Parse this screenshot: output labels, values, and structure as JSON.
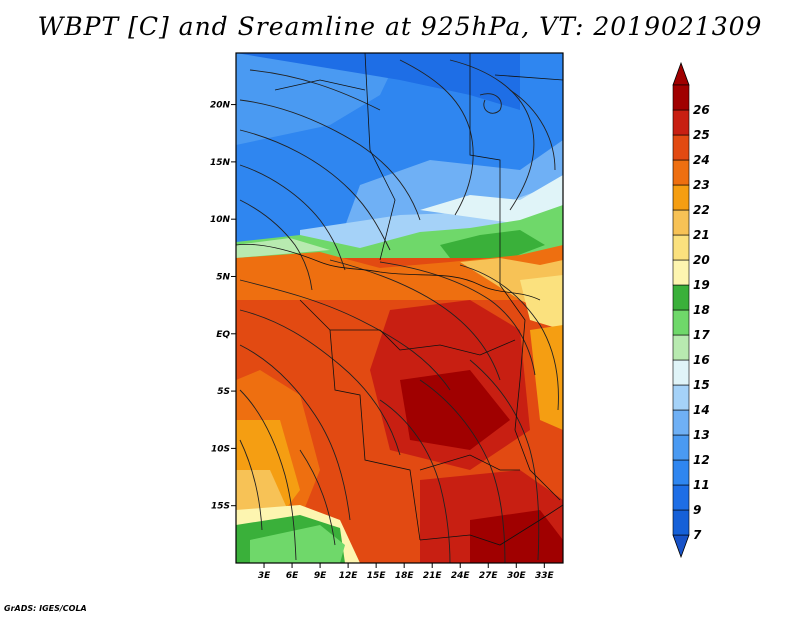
{
  "title": "WBPT [C] and Sreamline at 925hPa, VT: 2019021309",
  "credit": "GrADS: IGES/COLA",
  "map": {
    "lon_range": [
      0,
      35
    ],
    "lat_range": [
      -20,
      24.5
    ],
    "lat_ticks": [
      {
        "value": 20,
        "label": "20N"
      },
      {
        "value": 15,
        "label": "15N"
      },
      {
        "value": 10,
        "label": "10N"
      },
      {
        "value": 5,
        "label": "5N"
      },
      {
        "value": 0,
        "label": "EQ"
      },
      {
        "value": -5,
        "label": "5S"
      },
      {
        "value": -10,
        "label": "10S"
      },
      {
        "value": -15,
        "label": "15S"
      }
    ],
    "lon_ticks": [
      {
        "value": 3,
        "label": "3E"
      },
      {
        "value": 6,
        "label": "6E"
      },
      {
        "value": 9,
        "label": "9E"
      },
      {
        "value": 12,
        "label": "12E"
      },
      {
        "value": 15,
        "label": "15E"
      },
      {
        "value": 18,
        "label": "18E"
      },
      {
        "value": 21,
        "label": "21E"
      },
      {
        "value": 24,
        "label": "24E"
      },
      {
        "value": 27,
        "label": "27E"
      },
      {
        "value": 30,
        "label": "30E"
      },
      {
        "value": 33,
        "label": "33E"
      }
    ]
  },
  "colorbar": {
    "levels": [
      {
        "label": "7",
        "color": "#1560d8"
      },
      {
        "label": "9",
        "color": "#1e6ee6"
      },
      {
        "label": "11",
        "color": "#2f86f0"
      },
      {
        "label": "12",
        "color": "#4a9af2"
      },
      {
        "label": "13",
        "color": "#6fb0f5"
      },
      {
        "label": "14",
        "color": "#a5d2f8"
      },
      {
        "label": "15",
        "color": "#e0f4f8"
      },
      {
        "label": "16",
        "color": "#b8eab0"
      },
      {
        "label": "17",
        "color": "#6fd86a"
      },
      {
        "label": "18",
        "color": "#3ab03a"
      },
      {
        "label": "19",
        "color": "#fdf5b0"
      },
      {
        "label": "20",
        "color": "#fbe17e"
      },
      {
        "label": "21",
        "color": "#f7c256"
      },
      {
        "label": "22",
        "color": "#f59e12"
      },
      {
        "label": "23",
        "color": "#ee6f10"
      },
      {
        "label": "24",
        "color": "#e24a12"
      },
      {
        "label": "25",
        "color": "#c81f12"
      },
      {
        "label": "26",
        "color": "#a00000"
      }
    ],
    "low_color": "#1752c8",
    "high_color": "#a00000"
  }
}
